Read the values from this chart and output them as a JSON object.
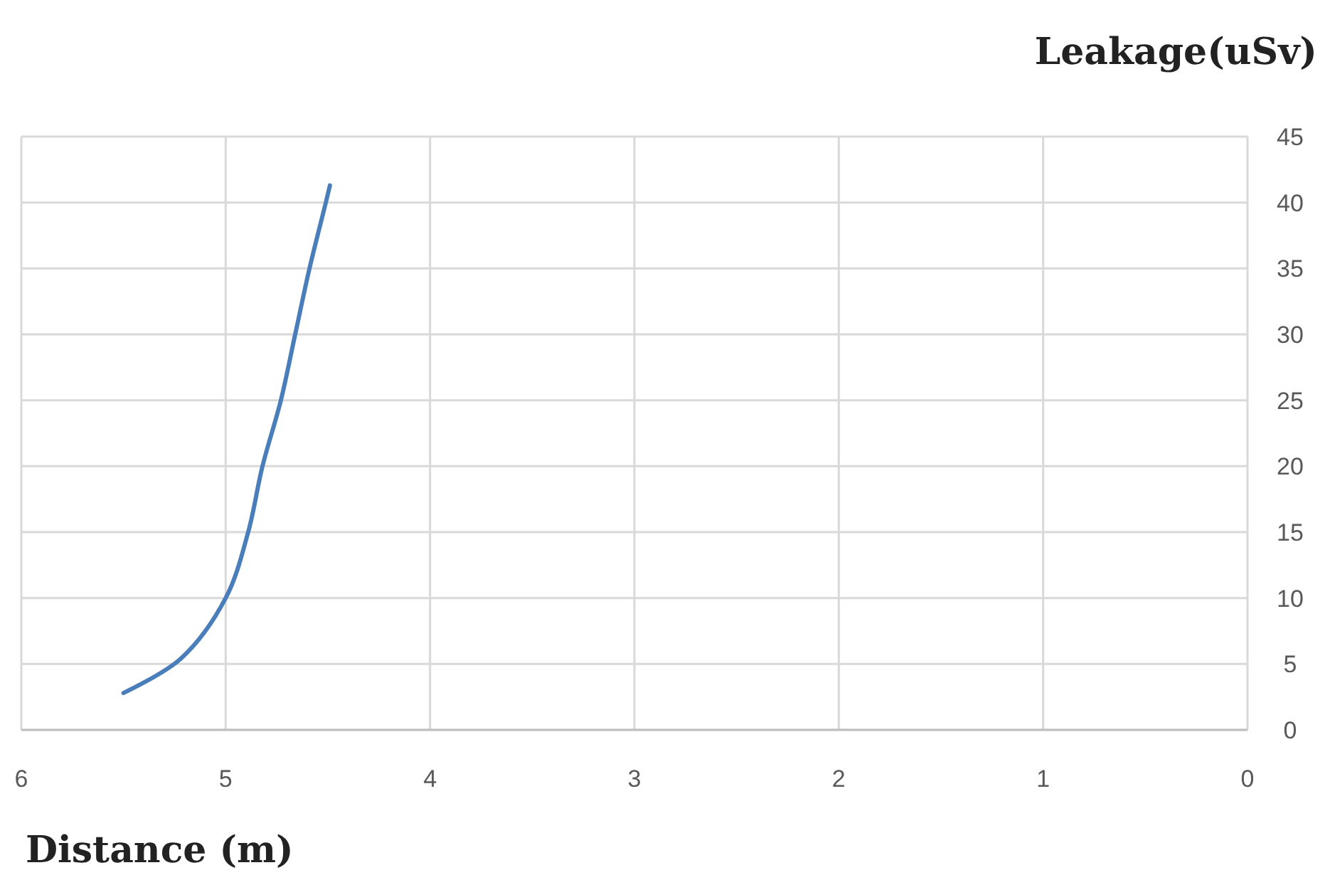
{
  "chart_data": {
    "type": "line",
    "ylabel": "Leakage(uSv)",
    "xlabel": "Distance (m)",
    "x": [
      5.5,
      5.22,
      5,
      4.89,
      4.82,
      4.73,
      4.66,
      4.59,
      4.51,
      4.49
    ],
    "series": [
      {
        "color": "#4a7ebb",
        "values": [
          2.8,
          5.4,
          10,
          15,
          20,
          25,
          30,
          35,
          40,
          41.3
        ]
      }
    ],
    "xlim": [
      6,
      0
    ],
    "xticks": [
      6,
      5,
      4,
      3,
      2,
      1,
      0
    ],
    "ylim": [
      0,
      45
    ],
    "yticks": [
      0,
      5,
      10,
      15,
      20,
      25,
      30,
      35,
      40,
      45
    ],
    "grid": true,
    "marker": "none",
    "line_style": "solid"
  }
}
